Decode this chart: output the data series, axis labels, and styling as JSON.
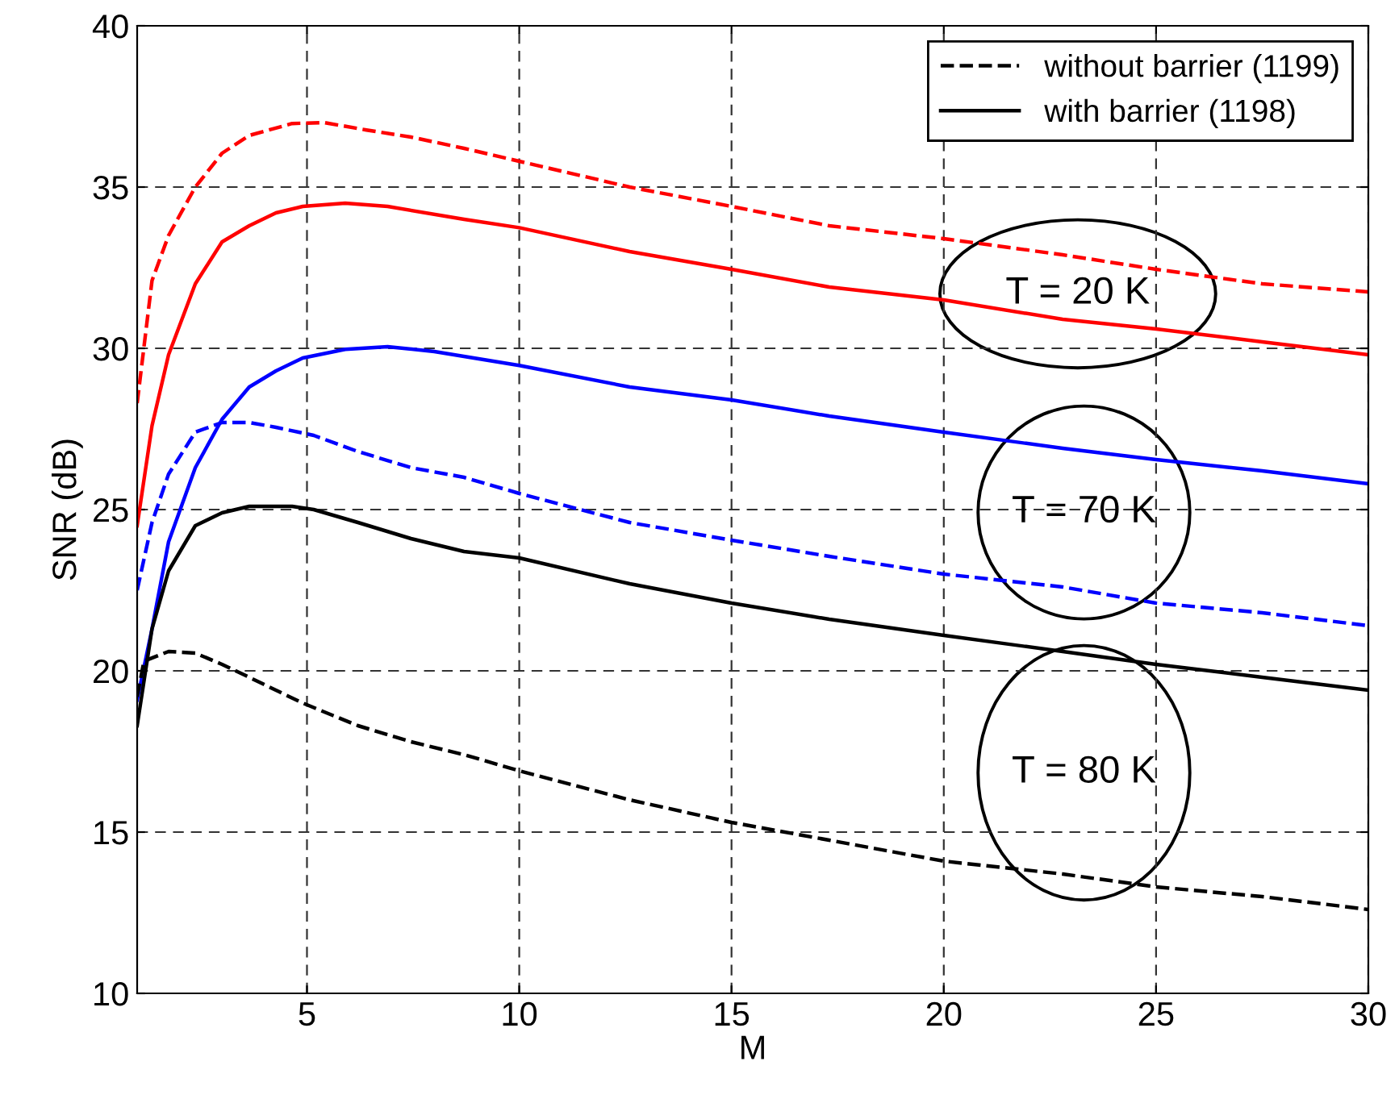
{
  "chart_data": {
    "type": "line",
    "xlabel": "M",
    "ylabel": "SNR (dB)",
    "xlim": [
      1,
      30
    ],
    "ylim": [
      10,
      40
    ],
    "xticks": [
      5,
      10,
      15,
      20,
      25,
      30
    ],
    "yticks": [
      10,
      15,
      20,
      25,
      30,
      35,
      40
    ],
    "grid": true,
    "legend": "top right",
    "marker": "none",
    "series": [
      {
        "color": "#ff0000",
        "line_style": "dashed",
        "x": [
          1.0,
          1.35,
          1.74,
          2.37,
          3.0,
          3.64,
          4.65,
          5.4,
          6.4,
          7.45,
          8.7,
          10,
          12.6,
          15,
          17.3,
          20,
          22.8,
          25,
          27.5,
          30
        ],
        "values": [
          28.3,
          32.1,
          33.5,
          35.0,
          36.05,
          36.6,
          36.97,
          37.0,
          36.77,
          36.55,
          36.2,
          35.8,
          35.0,
          34.4,
          33.8,
          33.4,
          32.9,
          32.45,
          32.0,
          31.75
        ]
      },
      {
        "color": "#ff0000",
        "line_style": "solid",
        "x": [
          1.0,
          1.35,
          1.74,
          2.37,
          3.0,
          3.64,
          4.27,
          4.9,
          5.9,
          6.9,
          8.7,
          10,
          12.6,
          15,
          17.3,
          20,
          22.8,
          25,
          27.5,
          30
        ],
        "values": [
          24.5,
          27.6,
          29.8,
          32.0,
          33.3,
          33.8,
          34.2,
          34.4,
          34.5,
          34.4,
          34.0,
          33.74,
          33.0,
          32.45,
          31.9,
          31.5,
          30.9,
          30.6,
          30.2,
          29.8
        ]
      },
      {
        "color": "#0000ff",
        "line_style": "solid",
        "x": [
          1.0,
          1.35,
          1.74,
          2.37,
          3.0,
          3.64,
          4.27,
          4.9,
          5.9,
          6.9,
          8.0,
          10,
          12.6,
          15,
          17.3,
          20,
          22.8,
          25,
          27.5,
          30
        ],
        "values": [
          19.1,
          21.3,
          24.0,
          26.3,
          27.8,
          28.8,
          29.3,
          29.7,
          29.97,
          30.05,
          29.9,
          29.47,
          28.8,
          28.4,
          27.9,
          27.4,
          26.9,
          26.55,
          26.2,
          25.8
        ]
      },
      {
        "color": "#0000ff",
        "line_style": "dashed",
        "x": [
          1.0,
          1.35,
          1.74,
          2.37,
          3.0,
          3.64,
          4.27,
          5.16,
          6.2,
          7.45,
          8.7,
          10,
          12.6,
          15,
          17.3,
          20,
          22.8,
          25,
          27.5,
          30
        ],
        "values": [
          22.5,
          24.6,
          26.1,
          27.4,
          27.7,
          27.7,
          27.55,
          27.3,
          26.8,
          26.3,
          26.0,
          25.5,
          24.6,
          24.05,
          23.55,
          23.0,
          22.6,
          22.1,
          21.8,
          21.4
        ]
      },
      {
        "name": "without barrier (1199)",
        "color": "#000000",
        "line_style": "dashed",
        "x": [
          1.0,
          1.16,
          1.74,
          2.37,
          3.0,
          3.64,
          4.9,
          6.2,
          7.45,
          8.7,
          10,
          12.6,
          15,
          17.3,
          20,
          22.8,
          25,
          27.5,
          30
        ],
        "values": [
          19.2,
          20.3,
          20.6,
          20.55,
          20.2,
          19.8,
          19.0,
          18.3,
          17.8,
          17.4,
          16.9,
          16.0,
          15.3,
          14.75,
          14.1,
          13.7,
          13.3,
          13.0,
          12.6
        ]
      },
      {
        "name": "with barrier (1198)",
        "color": "#000000",
        "line_style": "solid",
        "x": [
          1.0,
          1.35,
          1.74,
          2.37,
          3.0,
          3.64,
          4.65,
          5.16,
          6.2,
          7.45,
          8.7,
          10,
          12.6,
          15,
          17.3,
          20,
          22.8,
          25,
          27.5,
          30
        ],
        "values": [
          18.3,
          21.3,
          23.1,
          24.5,
          24.9,
          25.1,
          25.1,
          25.0,
          24.6,
          24.1,
          23.7,
          23.5,
          22.7,
          22.1,
          21.6,
          21.1,
          20.6,
          20.2,
          19.8,
          19.4
        ]
      }
    ],
    "annotations": [
      "T = 20 K",
      "T = 70 K",
      "T = 80 K"
    ]
  }
}
